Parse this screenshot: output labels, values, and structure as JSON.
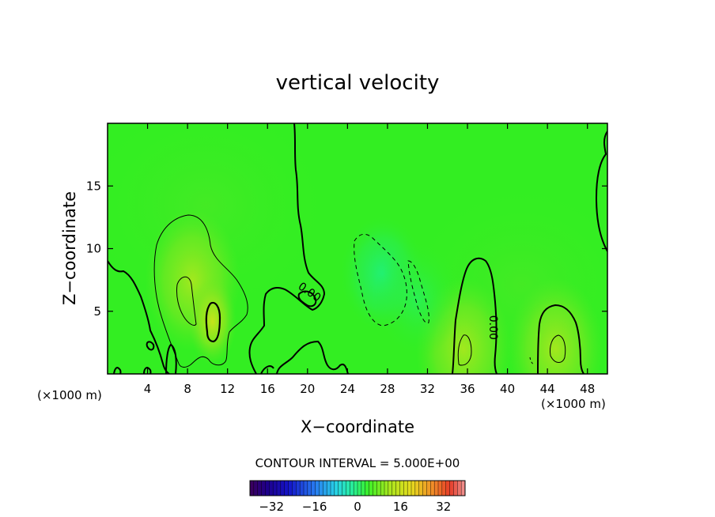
{
  "chart_data": {
    "type": "heatmap",
    "title": "vertical velocity",
    "xlabel": "X−coordinate",
    "ylabel": "Z−coordinate",
    "x_unit_left": "(×1000 m)",
    "x_unit_right": "(×1000 m)",
    "xlim": [
      0,
      50
    ],
    "ylim": [
      0,
      20
    ],
    "x_ticks": [
      4,
      8,
      12,
      16,
      20,
      24,
      28,
      32,
      36,
      40,
      44,
      48
    ],
    "x_tick_labels": [
      "4",
      "8",
      "12",
      "16",
      "20",
      "24",
      "28",
      "32",
      "36",
      "40",
      "44",
      "48"
    ],
    "y_ticks": [
      5,
      10,
      15
    ],
    "y_tick_labels": [
      "5",
      "10",
      "15"
    ],
    "contour_interval_text": "CONTOUR INTERVAL = 5.000E+00",
    "contour_interval": 5.0,
    "contour_labels": [
      {
        "text": "0.00",
        "x": 20,
        "y": 6.3
      },
      {
        "text": "0.00",
        "x": 38.2,
        "y": 3.7
      }
    ],
    "colorbar": {
      "range": [
        -40,
        40
      ],
      "ticks": [
        -32,
        -16,
        0,
        16,
        32
      ],
      "tick_labels": [
        "−32",
        "−16",
        "0",
        "16",
        "32"
      ]
    },
    "features": [
      {
        "kind": "updraft",
        "x": 8.5,
        "z": 7.5,
        "peak": 8
      },
      {
        "kind": "updraft",
        "x": 10.5,
        "z": 4.2,
        "peak": 10
      },
      {
        "kind": "updraft",
        "x": 35.6,
        "z": 2.0,
        "peak": 6
      },
      {
        "kind": "updraft",
        "x": 44.8,
        "z": 2.0,
        "peak": 6
      },
      {
        "kind": "downdraft",
        "x": 27.5,
        "z": 8.0,
        "peak": -6
      },
      {
        "kind": "downdraft",
        "x": 31.0,
        "z": 6.0,
        "peak": -5
      }
    ],
    "colors": {
      "background": "#33ee22",
      "frame": "#000000"
    }
  }
}
